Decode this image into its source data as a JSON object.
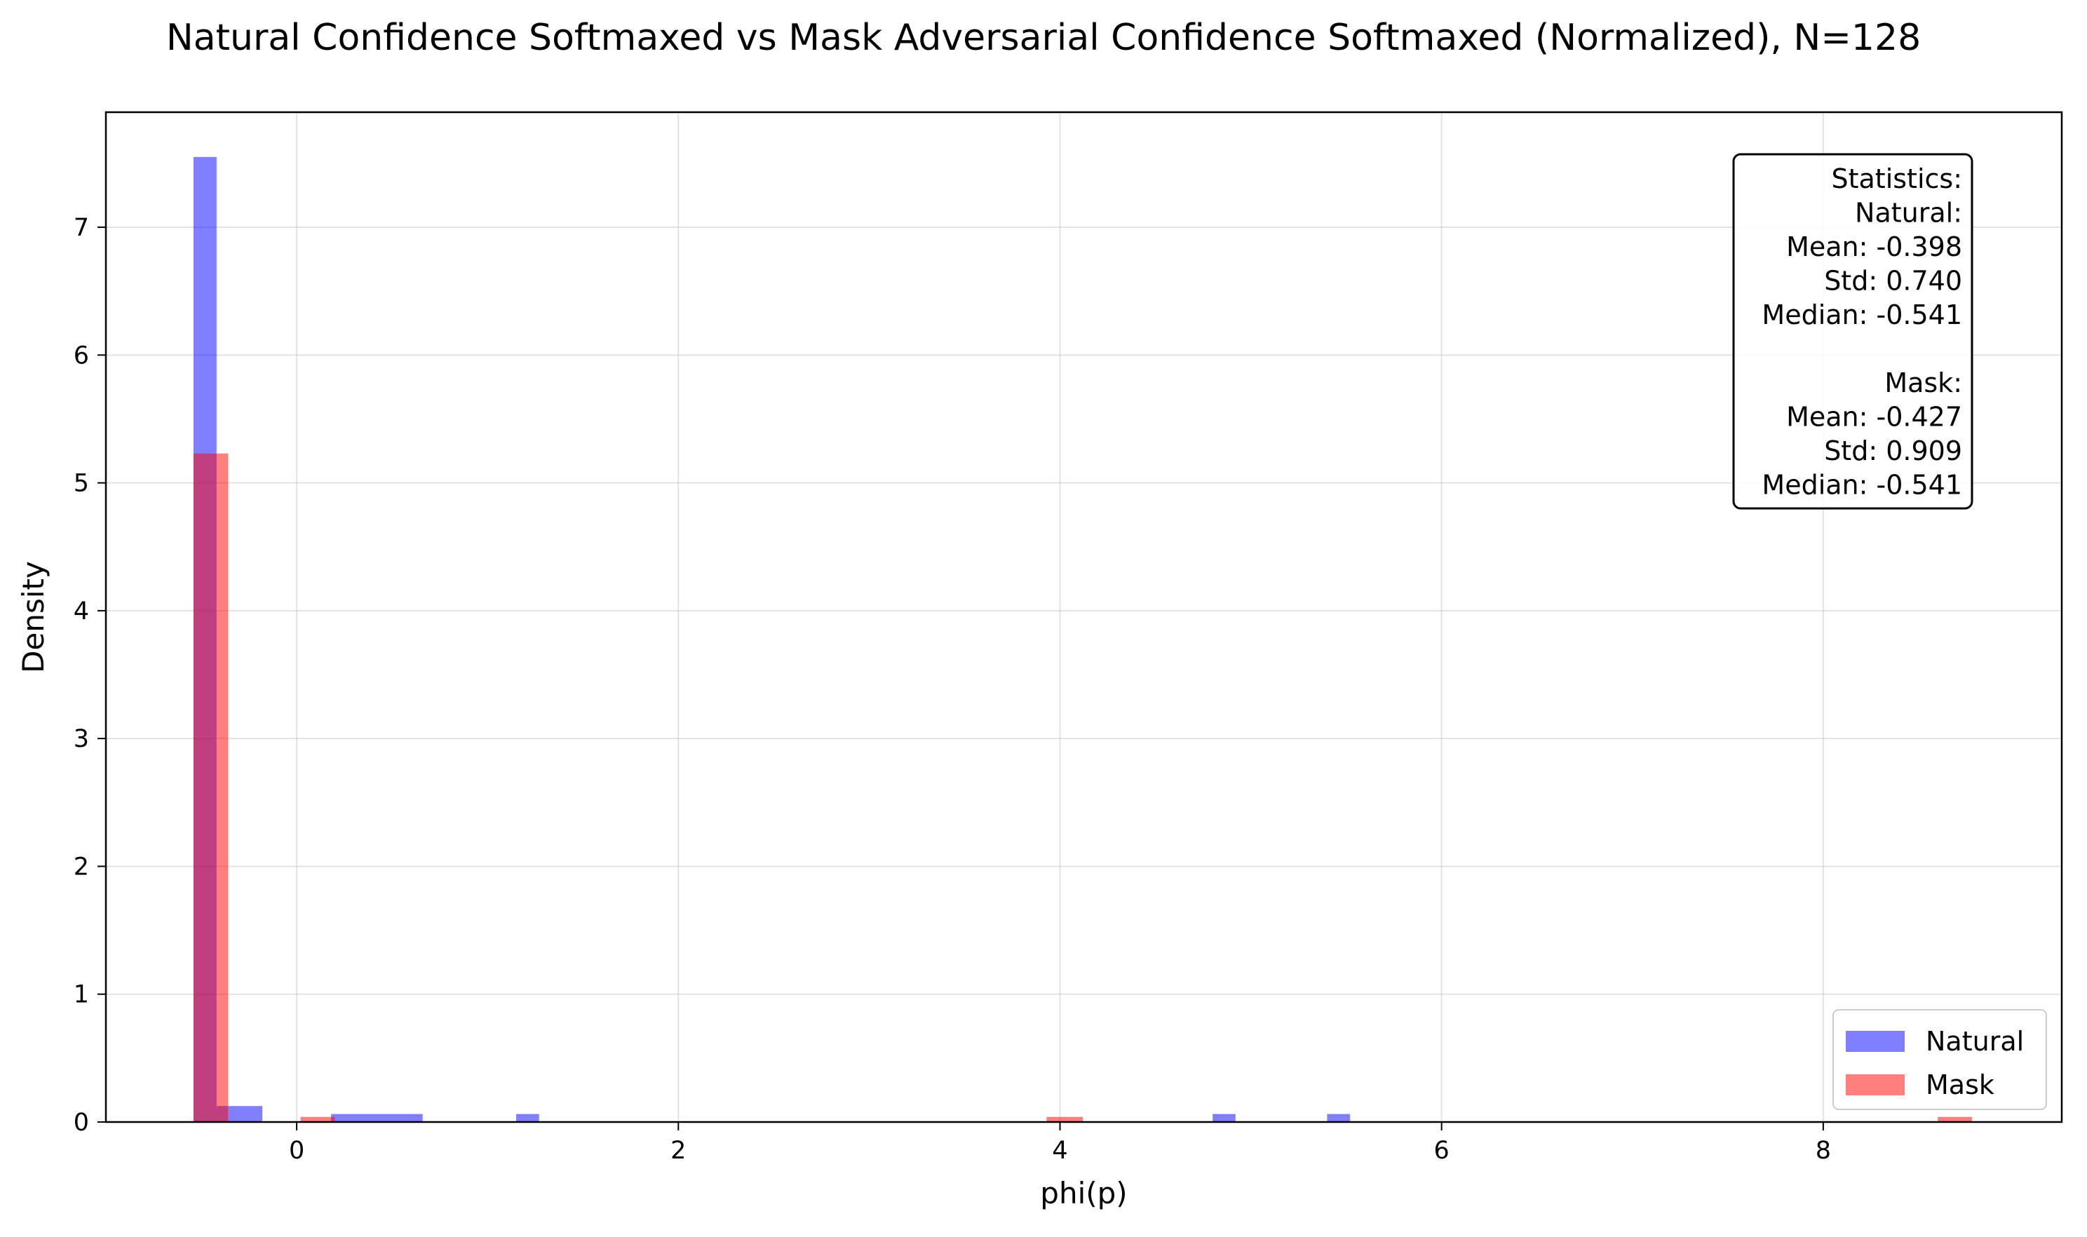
{
  "chart_data": {
    "type": "histogram",
    "title": "Natural Confidence Softmaxed vs Mask Adversarial Confidence Softmaxed (Normalized), N=128",
    "xlabel": "phi(p)",
    "ylabel": "Density",
    "xlim": [
      -1.0,
      9.25
    ],
    "ylim": [
      0,
      7.9
    ],
    "xticks": [
      0,
      2,
      4,
      6,
      8
    ],
    "yticks": [
      0,
      1,
      2,
      3,
      4,
      5,
      6,
      7
    ],
    "grid": true,
    "legend_position": "lower right",
    "series": [
      {
        "name": "Natural",
        "color": "#0000ff",
        "opacity": 0.5,
        "bins": [
          {
            "x0": -0.541,
            "x1": -0.42,
            "density": 7.55
          },
          {
            "x0": -0.42,
            "x1": -0.18,
            "density": 0.125
          },
          {
            "x0": 0.18,
            "x1": 0.66,
            "density": 0.0625
          },
          {
            "x0": 1.15,
            "x1": 1.27,
            "density": 0.0625
          },
          {
            "x0": 4.8,
            "x1": 4.92,
            "density": 0.0625
          },
          {
            "x0": 5.4,
            "x1": 5.52,
            "density": 0.0625
          }
        ]
      },
      {
        "name": "Mask",
        "color": "#ff0000",
        "opacity": 0.5,
        "bins": [
          {
            "x0": -0.541,
            "x1": -0.36,
            "density": 5.23
          },
          {
            "x0": 0.02,
            "x1": 0.2,
            "density": 0.04
          },
          {
            "x0": 3.93,
            "x1": 4.12,
            "density": 0.04
          },
          {
            "x0": 8.6,
            "x1": 8.78,
            "density": 0.04
          }
        ]
      }
    ],
    "stats_box": {
      "lines": [
        "Statistics:",
        "Natural:",
        "Mean: -0.398",
        "Std: 0.740",
        "Median: -0.541",
        "",
        "Mask:",
        "Mean: -0.427",
        "Std: 0.909",
        "Median: -0.541"
      ]
    }
  }
}
